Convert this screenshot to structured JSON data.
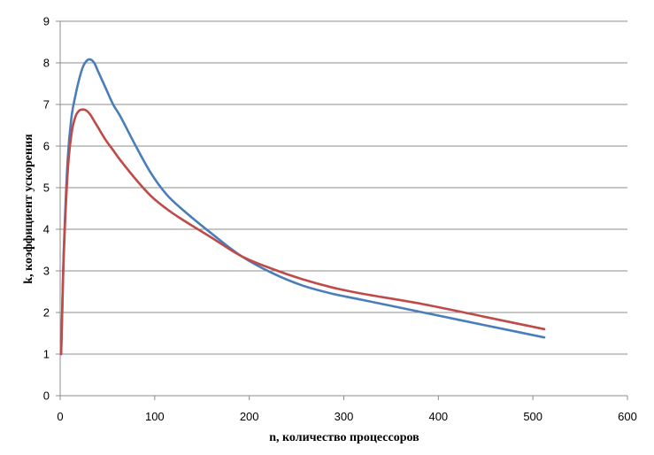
{
  "chart_data": {
    "type": "line",
    "title": "",
    "xlabel": "n, количество процессоров",
    "ylabel": "k, коэффициент ускорения",
    "xlim": [
      0,
      600
    ],
    "ylim": [
      0,
      9
    ],
    "xticks": [
      0,
      100,
      200,
      300,
      400,
      500,
      600
    ],
    "yticks": [
      0,
      1,
      2,
      3,
      4,
      5,
      6,
      7,
      8,
      9
    ],
    "grid": "horizontal",
    "legend": "none",
    "series": [
      {
        "color": "#4a7ebb",
        "x": [
          1,
          2,
          4,
          8,
          12,
          16,
          20,
          24,
          28,
          32,
          36,
          40,
          48,
          56,
          64,
          80,
          96,
          112,
          128,
          160,
          192,
          224,
          256,
          288,
          320,
          384,
          448,
          512
        ],
        "y": [
          1,
          1.9,
          3.6,
          5.7,
          6.7,
          7.2,
          7.6,
          7.9,
          8.05,
          8.08,
          8.0,
          7.8,
          7.4,
          7.0,
          6.7,
          6.0,
          5.35,
          4.85,
          4.5,
          3.9,
          3.35,
          2.95,
          2.65,
          2.45,
          2.3,
          2.0,
          1.7,
          1.4
        ]
      },
      {
        "color": "#be4b48",
        "x": [
          1,
          2,
          4,
          8,
          12,
          16,
          20,
          24,
          28,
          32,
          36,
          40,
          48,
          56,
          64,
          80,
          96,
          112,
          128,
          160,
          192,
          224,
          256,
          288,
          320,
          384,
          448,
          512
        ],
        "y": [
          1,
          1.9,
          3.5,
          5.4,
          6.3,
          6.7,
          6.85,
          6.88,
          6.85,
          6.75,
          6.6,
          6.45,
          6.15,
          5.9,
          5.65,
          5.2,
          4.8,
          4.5,
          4.25,
          3.8,
          3.35,
          3.05,
          2.8,
          2.6,
          2.45,
          2.2,
          1.9,
          1.6
        ]
      }
    ]
  }
}
